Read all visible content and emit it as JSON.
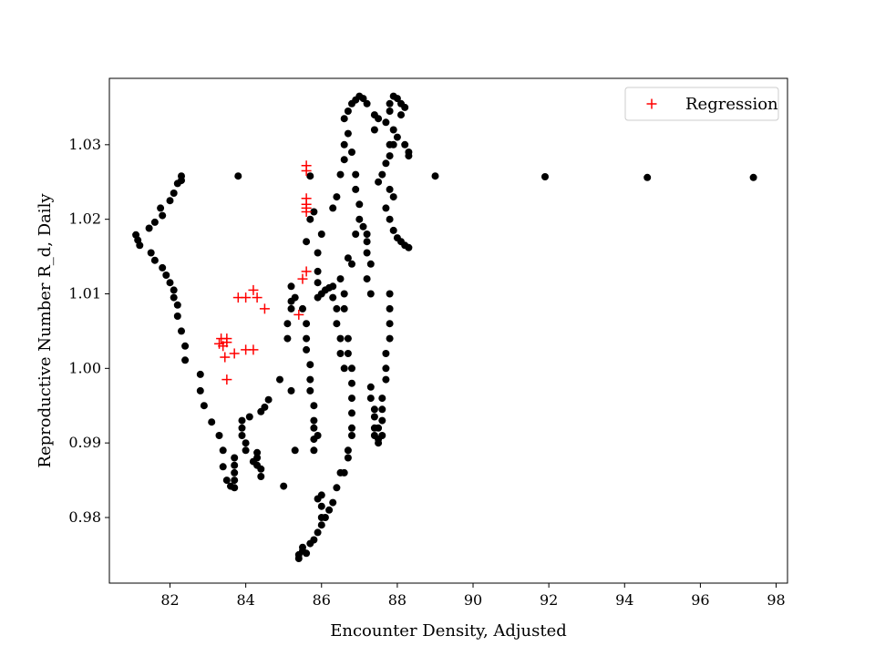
{
  "chart_data": {
    "type": "scatter",
    "xlabel": "Encounter Density, Adjusted",
    "ylabel": "Reproductive Number R_d, Daily",
    "xlim": [
      80.4,
      98.3
    ],
    "ylim": [
      0.9712,
      1.0389
    ],
    "xticks": [
      82,
      84,
      86,
      88,
      90,
      92,
      94,
      96,
      98
    ],
    "yticks": [
      0.98,
      0.99,
      1.0,
      1.01,
      1.02,
      1.03
    ],
    "ytick_labels": [
      "0.98",
      "0.99",
      "1.00",
      "1.01",
      "1.02",
      "1.03"
    ],
    "grid": false,
    "legend": {
      "position": "top-right",
      "entries": [
        "Regression"
      ]
    },
    "colors": {
      "observed": "#000000",
      "regression": "#ff0000"
    },
    "series": [
      {
        "marker": "dot",
        "points": [
          [
            81.1,
            1.0179
          ],
          [
            81.15,
            1.0172
          ],
          [
            81.2,
            1.0165
          ],
          [
            81.45,
            1.0188
          ],
          [
            81.6,
            1.0196
          ],
          [
            81.8,
            1.0205
          ],
          [
            81.75,
            1.0215
          ],
          [
            82.0,
            1.0225
          ],
          [
            82.1,
            1.0235
          ],
          [
            82.2,
            1.0248
          ],
          [
            82.3,
            1.0252
          ],
          [
            82.3,
            1.0258
          ],
          [
            81.5,
            1.0155
          ],
          [
            81.6,
            1.0145
          ],
          [
            81.8,
            1.0135
          ],
          [
            81.9,
            1.0125
          ],
          [
            82.0,
            1.0115
          ],
          [
            82.1,
            1.0105
          ],
          [
            82.1,
            1.0095
          ],
          [
            82.2,
            1.0085
          ],
          [
            82.2,
            1.007
          ],
          [
            82.3,
            1.005
          ],
          [
            82.4,
            1.003
          ],
          [
            82.4,
            1.0011
          ],
          [
            82.8,
            0.9992
          ],
          [
            82.8,
            0.997
          ],
          [
            82.9,
            0.995
          ],
          [
            83.1,
            0.9928
          ],
          [
            83.3,
            0.991
          ],
          [
            83.4,
            0.989
          ],
          [
            83.4,
            0.9868
          ],
          [
            83.5,
            0.985
          ],
          [
            83.6,
            0.9842
          ],
          [
            83.7,
            0.984
          ],
          [
            83.7,
            0.985
          ],
          [
            83.7,
            0.986
          ],
          [
            83.7,
            0.987
          ],
          [
            83.7,
            0.988
          ],
          [
            83.8,
            1.0258
          ],
          [
            83.9,
            0.993
          ],
          [
            83.9,
            0.992
          ],
          [
            83.9,
            0.991
          ],
          [
            84.0,
            0.99
          ],
          [
            84.0,
            0.989
          ],
          [
            84.1,
            0.9935
          ],
          [
            84.2,
            0.9875
          ],
          [
            84.3,
            0.988
          ],
          [
            84.3,
            0.9887
          ],
          [
            84.3,
            0.987
          ],
          [
            84.4,
            0.9865
          ],
          [
            84.4,
            0.9855
          ],
          [
            84.4,
            0.9942
          ],
          [
            84.5,
            0.9948
          ],
          [
            84.6,
            0.9958
          ],
          [
            84.9,
            0.9985
          ],
          [
            85.0,
            0.9842
          ],
          [
            85.1,
            1.004
          ],
          [
            85.1,
            1.006
          ],
          [
            85.2,
            1.008
          ],
          [
            85.2,
            1.009
          ],
          [
            85.2,
            0.997
          ],
          [
            85.3,
            1.0095
          ],
          [
            85.2,
            1.011
          ],
          [
            85.3,
            0.989
          ],
          [
            85.4,
            0.9745
          ],
          [
            85.4,
            0.975
          ],
          [
            85.5,
            0.9755
          ],
          [
            85.5,
            0.976
          ],
          [
            85.6,
            0.9752
          ],
          [
            85.7,
            0.9765
          ],
          [
            85.8,
            0.977
          ],
          [
            85.9,
            0.978
          ],
          [
            86.0,
            0.979
          ],
          [
            86.1,
            0.98
          ],
          [
            86.2,
            0.981
          ],
          [
            86.3,
            0.982
          ],
          [
            86.4,
            0.984
          ],
          [
            86.5,
            0.986
          ],
          [
            85.5,
            1.008
          ],
          [
            85.6,
            1.006
          ],
          [
            85.6,
            1.004
          ],
          [
            85.6,
            1.0025
          ],
          [
            85.7,
            1.0005
          ],
          [
            85.7,
            0.9985
          ],
          [
            85.7,
            0.997
          ],
          [
            85.8,
            0.995
          ],
          [
            85.8,
            0.993
          ],
          [
            85.8,
            0.992
          ],
          [
            85.9,
            0.991
          ],
          [
            85.8,
            0.9905
          ],
          [
            85.8,
            0.989
          ],
          [
            85.6,
            1.017
          ],
          [
            85.7,
            1.02
          ],
          [
            85.7,
            1.0258
          ],
          [
            85.8,
            1.021
          ],
          [
            85.9,
            1.0155
          ],
          [
            85.9,
            1.013
          ],
          [
            85.9,
            1.0115
          ],
          [
            86.0,
            1.018
          ],
          [
            85.9,
            0.9825
          ],
          [
            86.0,
            0.98
          ],
          [
            86.0,
            0.983
          ],
          [
            86.0,
            0.9815
          ],
          [
            85.9,
            1.0095
          ],
          [
            86.0,
            1.01
          ],
          [
            86.1,
            1.0105
          ],
          [
            86.2,
            1.0108
          ],
          [
            86.3,
            1.011
          ],
          [
            86.3,
            1.0095
          ],
          [
            86.4,
            1.008
          ],
          [
            86.4,
            1.006
          ],
          [
            86.5,
            1.004
          ],
          [
            86.5,
            1.002
          ],
          [
            86.6,
            1.0
          ],
          [
            86.3,
            1.0215
          ],
          [
            86.4,
            1.023
          ],
          [
            86.5,
            1.026
          ],
          [
            86.6,
            1.028
          ],
          [
            86.6,
            1.03
          ],
          [
            86.6,
            1.0335
          ],
          [
            86.7,
            1.0345
          ],
          [
            86.8,
            1.0355
          ],
          [
            86.9,
            1.036
          ],
          [
            87.0,
            1.0365
          ],
          [
            87.1,
            1.0362
          ],
          [
            87.2,
            1.0355
          ],
          [
            86.5,
            1.012
          ],
          [
            86.6,
            1.01
          ],
          [
            86.6,
            1.008
          ],
          [
            86.7,
            1.004
          ],
          [
            86.7,
            1.002
          ],
          [
            86.8,
            1.0
          ],
          [
            86.8,
            0.998
          ],
          [
            86.8,
            0.996
          ],
          [
            86.8,
            0.994
          ],
          [
            86.8,
            0.992
          ],
          [
            86.8,
            0.991
          ],
          [
            86.7,
            0.989
          ],
          [
            86.7,
            0.988
          ],
          [
            86.6,
            0.986
          ],
          [
            86.7,
            1.0148
          ],
          [
            86.8,
            1.014
          ],
          [
            86.9,
            1.018
          ],
          [
            86.7,
            1.0315
          ],
          [
            86.8,
            1.029
          ],
          [
            86.9,
            1.026
          ],
          [
            86.9,
            1.024
          ],
          [
            87.0,
            1.022
          ],
          [
            87.0,
            1.02
          ],
          [
            87.1,
            1.019
          ],
          [
            87.2,
            1.018
          ],
          [
            87.2,
            1.017
          ],
          [
            87.2,
            1.0155
          ],
          [
            87.3,
            1.014
          ],
          [
            87.2,
            1.012
          ],
          [
            87.3,
            1.01
          ],
          [
            87.3,
            0.9975
          ],
          [
            87.3,
            0.996
          ],
          [
            87.4,
            0.9945
          ],
          [
            87.4,
            0.9935
          ],
          [
            87.4,
            0.992
          ],
          [
            87.4,
            0.991
          ],
          [
            87.5,
            0.9905
          ],
          [
            87.5,
            0.99
          ],
          [
            87.6,
            0.991
          ],
          [
            87.5,
            0.992
          ],
          [
            87.6,
            0.993
          ],
          [
            87.6,
            0.9945
          ],
          [
            87.6,
            0.996
          ],
          [
            87.7,
            0.9985
          ],
          [
            87.7,
            1.0
          ],
          [
            87.7,
            1.002
          ],
          [
            87.8,
            1.004
          ],
          [
            87.8,
            1.006
          ],
          [
            87.8,
            1.008
          ],
          [
            87.8,
            1.01
          ],
          [
            87.5,
            1.025
          ],
          [
            87.6,
            1.026
          ],
          [
            87.7,
            1.0275
          ],
          [
            87.8,
            1.0285
          ],
          [
            87.8,
            1.03
          ],
          [
            87.7,
            1.033
          ],
          [
            87.8,
            1.0345
          ],
          [
            87.8,
            1.0355
          ],
          [
            87.9,
            1.0365
          ],
          [
            88.0,
            1.0362
          ],
          [
            88.1,
            1.0355
          ],
          [
            88.2,
            1.035
          ],
          [
            88.1,
            1.034
          ],
          [
            87.9,
            1.032
          ],
          [
            88.0,
            1.031
          ],
          [
            87.9,
            1.03
          ],
          [
            87.7,
            1.0215
          ],
          [
            87.8,
            1.02
          ],
          [
            87.9,
            1.0185
          ],
          [
            88.0,
            1.0175
          ],
          [
            88.1,
            1.017
          ],
          [
            88.2,
            1.0165
          ],
          [
            88.3,
            1.0162
          ],
          [
            87.9,
            1.023
          ],
          [
            87.8,
            1.024
          ],
          [
            87.4,
            1.032
          ],
          [
            87.5,
            1.0335
          ],
          [
            87.4,
            1.034
          ],
          [
            88.2,
            1.03
          ],
          [
            88.3,
            1.029
          ],
          [
            88.3,
            1.0285
          ],
          [
            89.0,
            1.0258
          ],
          [
            91.9,
            1.0257
          ],
          [
            94.6,
            1.0256
          ],
          [
            97.4,
            1.0256
          ]
        ]
      },
      {
        "name": "Regression",
        "marker": "plus",
        "points": [
          [
            83.3,
            1.0033
          ],
          [
            83.35,
            1.004
          ],
          [
            83.4,
            1.003
          ],
          [
            83.45,
            1.0015
          ],
          [
            83.5,
            1.0035
          ],
          [
            83.5,
            1.004
          ],
          [
            83.5,
            0.9985
          ],
          [
            83.7,
            1.002
          ],
          [
            83.8,
            1.0095
          ],
          [
            84.0,
            1.0025
          ],
          [
            84.0,
            1.0095
          ],
          [
            84.2,
            1.0105
          ],
          [
            84.2,
            1.0025
          ],
          [
            84.3,
            1.0095
          ],
          [
            84.5,
            1.008
          ],
          [
            85.4,
            1.0072
          ],
          [
            85.5,
            1.012
          ],
          [
            85.6,
            1.013
          ],
          [
            85.6,
            1.021
          ],
          [
            85.6,
            1.0215
          ],
          [
            85.6,
            1.022
          ],
          [
            85.6,
            1.0228
          ],
          [
            85.6,
            1.0265
          ],
          [
            85.6,
            1.0272
          ]
        ]
      }
    ]
  }
}
